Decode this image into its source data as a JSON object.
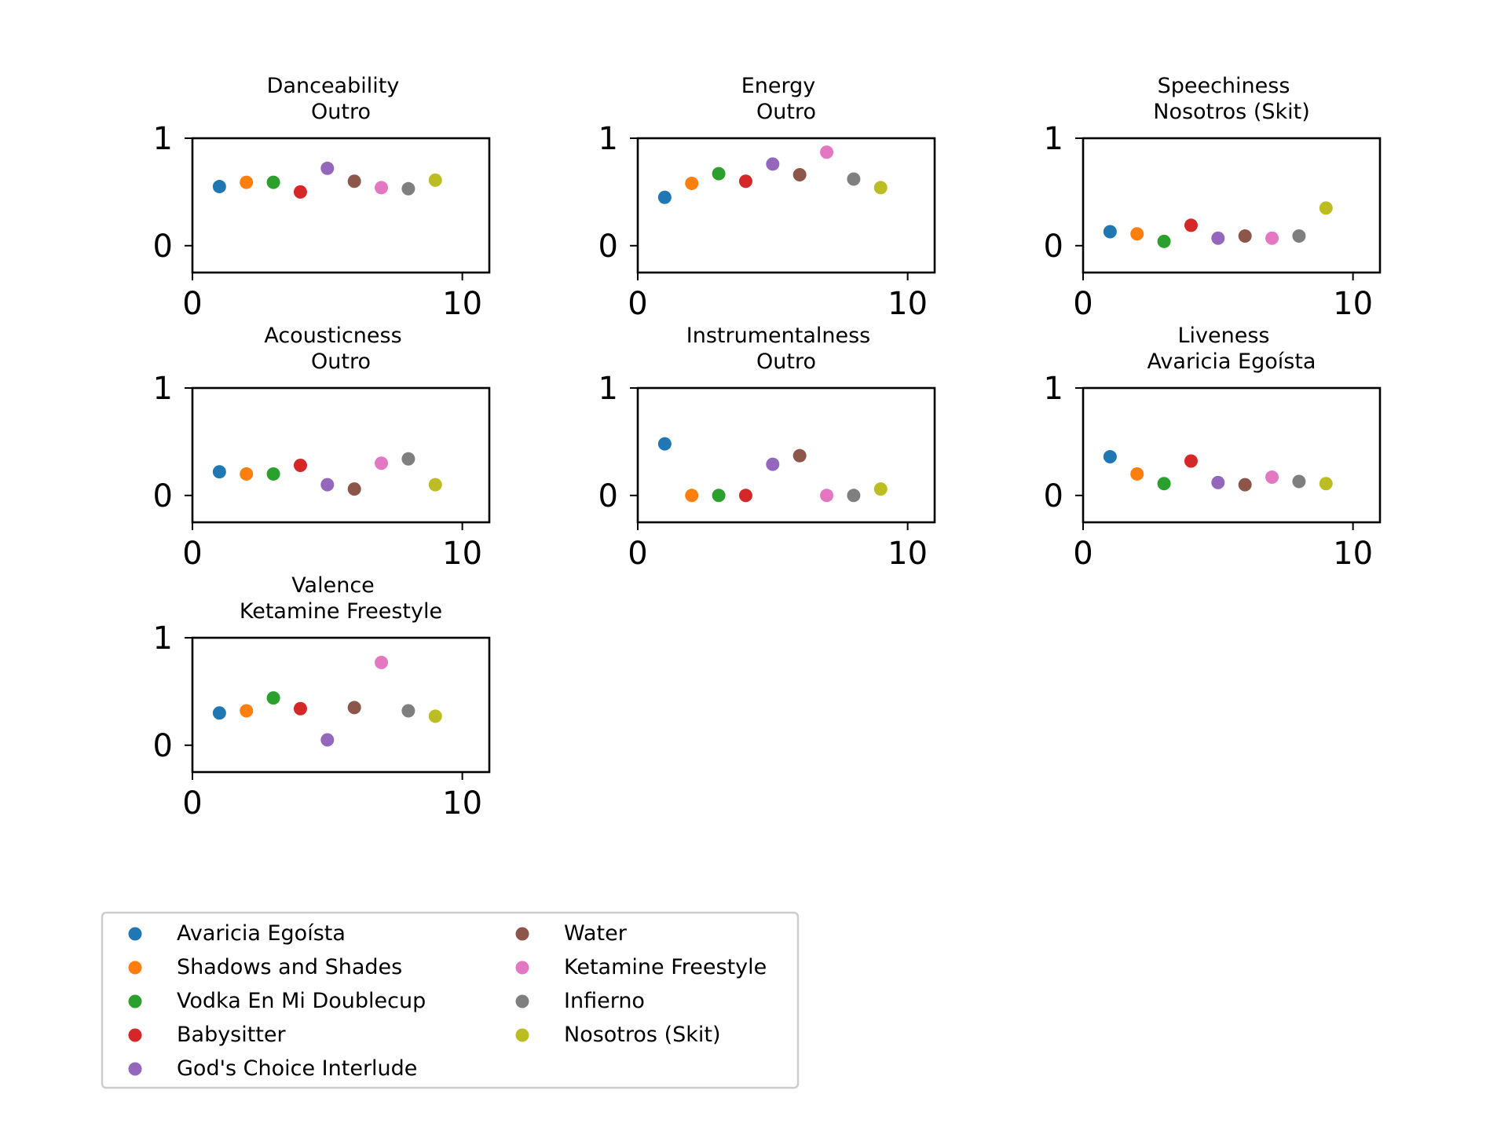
{
  "figure": {
    "background": "#ffffff"
  },
  "series_colors": [
    "#1f77b4",
    "#ff7f0e",
    "#2ca02c",
    "#d62728",
    "#9467bd",
    "#8c564b",
    "#e377c2",
    "#7f7f7f",
    "#bcbd22"
  ],
  "legend": {
    "placement": "bottom-left",
    "entries": [
      "Avaricia Egoísta",
      "Shadows and Shades",
      "Vodka En Mi Doublecup",
      "Babysitter",
      "God's Choice Interlude",
      "Water",
      "Ketamine Freestyle",
      "Infierno",
      "Nosotros (Skit)"
    ]
  },
  "chart_data": [
    {
      "type": "scatter",
      "metric": "Danceability",
      "title": [
        "Danceability",
        "Outro"
      ],
      "xlim": [
        0,
        11
      ],
      "ylim": [
        -0.25,
        1
      ],
      "xticks": [
        "0",
        "10"
      ],
      "yticks": [
        "0",
        "1"
      ],
      "x": [
        1,
        2,
        3,
        4,
        5,
        6,
        7,
        8,
        9
      ],
      "values": [
        0.55,
        0.59,
        0.59,
        0.5,
        0.72,
        0.6,
        0.54,
        0.53,
        0.61
      ]
    },
    {
      "type": "scatter",
      "metric": "Energy",
      "title": [
        "Energy",
        "Outro"
      ],
      "xlim": [
        0,
        11
      ],
      "ylim": [
        -0.25,
        1
      ],
      "xticks": [
        "0",
        "10"
      ],
      "yticks": [
        "0",
        "1"
      ],
      "x": [
        1,
        2,
        3,
        4,
        5,
        6,
        7,
        8,
        9
      ],
      "values": [
        0.45,
        0.58,
        0.67,
        0.6,
        0.76,
        0.66,
        0.87,
        0.62,
        0.54
      ]
    },
    {
      "type": "scatter",
      "metric": "Speechiness",
      "title": [
        "Speechiness",
        "Nosotros (Skit)"
      ],
      "xlim": [
        0,
        11
      ],
      "ylim": [
        -0.25,
        1
      ],
      "xticks": [
        "0",
        "10"
      ],
      "yticks": [
        "0",
        "1"
      ],
      "x": [
        1,
        2,
        3,
        4,
        5,
        6,
        7,
        8,
        9
      ],
      "values": [
        0.13,
        0.11,
        0.04,
        0.19,
        0.07,
        0.09,
        0.07,
        0.09,
        0.35
      ]
    },
    {
      "type": "scatter",
      "metric": "Acousticness",
      "title": [
        "Acousticness",
        "Outro"
      ],
      "xlim": [
        0,
        11
      ],
      "ylim": [
        -0.25,
        1
      ],
      "xticks": [
        "0",
        "10"
      ],
      "yticks": [
        "0",
        "1"
      ],
      "x": [
        1,
        2,
        3,
        4,
        5,
        6,
        7,
        8,
        9
      ],
      "values": [
        0.22,
        0.2,
        0.2,
        0.28,
        0.1,
        0.06,
        0.3,
        0.34,
        0.1
      ]
    },
    {
      "type": "scatter",
      "metric": "Instrumentalness",
      "title": [
        "Instrumentalness",
        "Outro"
      ],
      "xlim": [
        0,
        11
      ],
      "ylim": [
        -0.25,
        1
      ],
      "xticks": [
        "0",
        "10"
      ],
      "yticks": [
        "0",
        "1"
      ],
      "x": [
        1,
        2,
        3,
        4,
        5,
        6,
        7,
        8,
        9
      ],
      "values": [
        0.48,
        0.0,
        0.0,
        0.0,
        0.29,
        0.37,
        0.0,
        0.0,
        0.06
      ]
    },
    {
      "type": "scatter",
      "metric": "Liveness",
      "title": [
        "Liveness",
        "Avaricia Egoísta"
      ],
      "xlim": [
        0,
        11
      ],
      "ylim": [
        -0.25,
        1
      ],
      "xticks": [
        "0",
        "10"
      ],
      "yticks": [
        "0",
        "1"
      ],
      "x": [
        1,
        2,
        3,
        4,
        5,
        6,
        7,
        8,
        9
      ],
      "values": [
        0.36,
        0.2,
        0.11,
        0.32,
        0.12,
        0.1,
        0.17,
        0.13,
        0.11
      ]
    },
    {
      "type": "scatter",
      "metric": "Valence",
      "title": [
        "Valence",
        "Ketamine Freestyle"
      ],
      "xlim": [
        0,
        11
      ],
      "ylim": [
        -0.25,
        1
      ],
      "xticks": [
        "0",
        "10"
      ],
      "yticks": [
        "0",
        "1"
      ],
      "x": [
        1,
        2,
        3,
        4,
        5,
        6,
        7,
        8,
        9
      ],
      "values": [
        0.3,
        0.32,
        0.44,
        0.34,
        0.05,
        0.35,
        0.77,
        0.32,
        0.27
      ]
    }
  ]
}
